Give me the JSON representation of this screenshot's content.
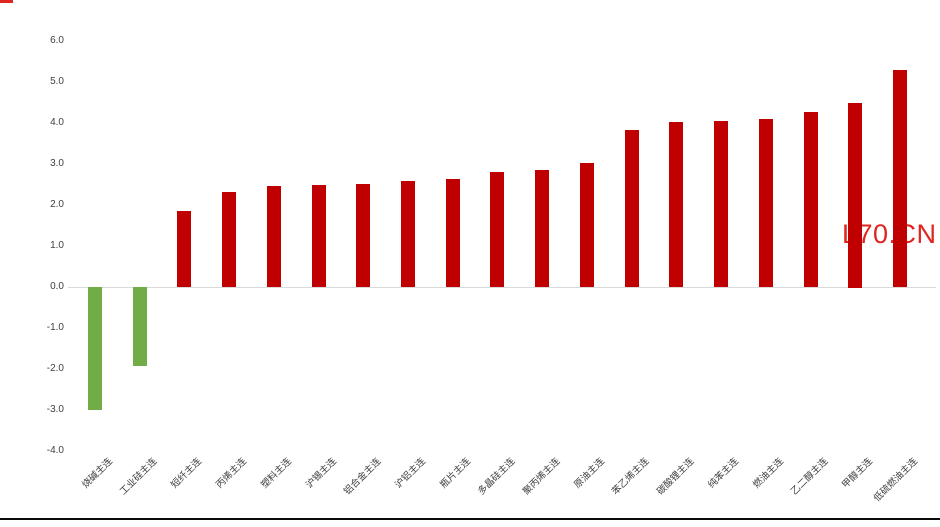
{
  "watermark": {
    "text": "L70.CN",
    "color": "#e02420"
  },
  "colors": {
    "positive_bar": "#c00000",
    "negative_bar": "#70ad47",
    "gridline": "#d9d9d9",
    "axis_text": "#404040",
    "bottom_line": "#0a0a0a",
    "red_mark": "#e02420"
  },
  "chart_data": {
    "type": "bar",
    "title": "",
    "xlabel": "",
    "ylabel": "",
    "legend": "none",
    "grid": "zero-line-only",
    "ylim": [
      -4.0,
      6.0
    ],
    "ytick_labels": [
      "6.0",
      "5.0",
      "4.0",
      "3.0",
      "2.0",
      "1.0",
      "0.0",
      "-1.0",
      "-2.0",
      "-3.0",
      "-4.0"
    ],
    "categories": [
      "烧碱主连",
      "工业硅主连",
      "短纤主连",
      "丙烯主连",
      "塑料主连",
      "沪锡主连",
      "铝合金主连",
      "沪铝主连",
      "瓶片主连",
      "多晶硅主连",
      "聚丙烯主连",
      "原油主连",
      "苯乙烯主连",
      "碳酸锂主连",
      "纯苯主连",
      "燃油主连",
      "乙二醇主连",
      "甲醇主连",
      "低硫燃油主连"
    ],
    "values": [
      -3.0,
      -1.93,
      1.85,
      2.32,
      2.47,
      2.48,
      2.51,
      2.58,
      2.64,
      2.8,
      2.86,
      3.02,
      3.83,
      4.02,
      4.05,
      4.09,
      4.26,
      4.5,
      5.3
    ],
    "positive_color": "#c00000",
    "negative_color": "#70ad47"
  }
}
